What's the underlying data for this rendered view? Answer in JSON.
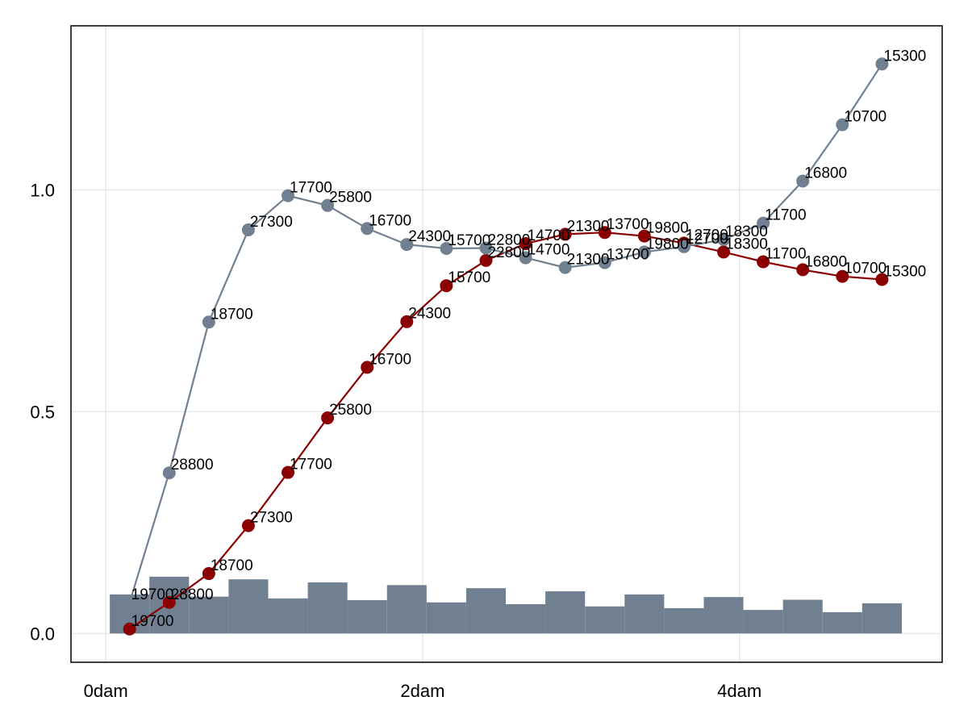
{
  "chart_data": {
    "type": "line",
    "x_tick_labels": [
      "0dam",
      "2dam",
      "4dam"
    ],
    "x_ticks": [
      0,
      2,
      4
    ],
    "y_tick_labels": [
      "0.0",
      "0.5",
      "1.0"
    ],
    "y_ticks": [
      0,
      0.5,
      1.0
    ],
    "xlim": [
      -0.22,
      5.28
    ],
    "ylim": [
      -0.065,
      1.37
    ],
    "grid": true,
    "x": [
      0.15,
      0.4,
      0.65,
      0.9,
      1.15,
      1.4,
      1.65,
      1.9,
      2.15,
      2.4,
      2.65,
      2.9,
      3.15,
      3.4,
      3.65,
      3.9,
      4.15,
      4.4,
      4.65,
      4.9
    ],
    "series": [
      {
        "color": "#8b0000",
        "values": [
          0.01,
          0.07,
          0.135,
          0.243,
          0.363,
          0.486,
          0.6,
          0.703,
          0.784,
          0.841,
          0.879,
          0.9,
          0.904,
          0.896,
          0.88,
          0.86,
          0.838,
          0.82,
          0.805,
          0.798
        ],
        "labels": [
          "19700",
          "28800",
          "18700",
          "27300",
          "17700",
          "25800",
          "16700",
          "24300",
          "15700",
          "22800",
          "14700",
          "21300",
          "13700",
          "19800",
          "12700",
          "18300",
          "11700",
          "16800",
          "10700",
          "15300"
        ]
      },
      {
        "color": "#708090",
        "values": [
          0.07,
          0.362,
          0.702,
          0.91,
          0.987,
          0.965,
          0.913,
          0.877,
          0.868,
          0.869,
          0.847,
          0.825,
          0.836,
          0.86,
          0.872,
          0.888,
          0.925,
          1.02,
          1.147,
          1.284
        ],
        "labels": [
          "19700",
          "28800",
          "18700",
          "27300",
          "17700",
          "25800",
          "16700",
          "24300",
          "15700",
          "22800",
          "14700",
          "21300",
          "13700",
          "19800",
          "12700",
          "18300",
          "11700",
          "16800",
          "10700",
          "15300"
        ]
      }
    ],
    "histogram": {
      "color": "#708090",
      "bin_edges": [
        0.025,
        0.275,
        0.525,
        0.775,
        1.025,
        1.275,
        1.525,
        1.775,
        2.025,
        2.275,
        2.525,
        2.775,
        3.025,
        3.275,
        3.525,
        3.775,
        4.025,
        4.275,
        4.525,
        4.775,
        5.025
      ],
      "values": [
        0.088,
        0.128,
        0.083,
        0.122,
        0.079,
        0.115,
        0.075,
        0.109,
        0.07,
        0.102,
        0.066,
        0.095,
        0.061,
        0.088,
        0.057,
        0.082,
        0.053,
        0.076,
        0.048,
        0.068
      ]
    }
  }
}
